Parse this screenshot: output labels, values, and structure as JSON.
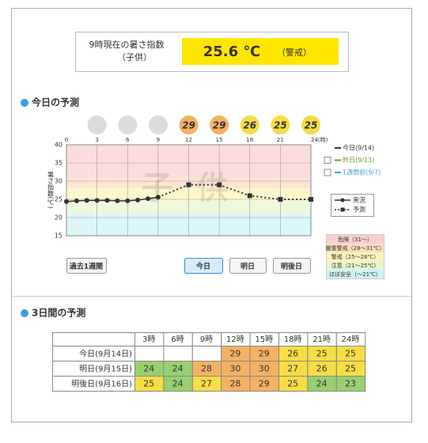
{
  "header": {
    "label_line1": "9時現在の暑さ指数",
    "label_line2": "（子供）",
    "value": "25.6 ℃",
    "level": "（警戒）"
  },
  "today_title": "今日の予測",
  "chart_data": {
    "type": "line",
    "y_label": "暑さ指数(℃)",
    "watermark": "子供",
    "xlim": [
      0,
      24
    ],
    "xticks": [
      0,
      3,
      6,
      9,
      12,
      15,
      18,
      21,
      {
        "value": 24,
        "label": "24(時)"
      }
    ],
    "ylim": [
      15,
      40
    ],
    "yticks": [
      15,
      20,
      25,
      30,
      35,
      40
    ],
    "grid": true,
    "bands": [
      {
        "label": "危険（31～）",
        "range": [
          31,
          null
        ],
        "color": "#f9cfcf",
        "cell_color": "#f08a8a"
      },
      {
        "label": "厳重警戒（28～31℃）",
        "range": [
          28,
          31
        ],
        "color": "#fcdcc0",
        "cell_color": "#f5b262"
      },
      {
        "label": "警戒（25～28℃）",
        "range": [
          25,
          28
        ],
        "color": "#fdf3b8",
        "cell_color": "#f7dd45"
      },
      {
        "label": "注意（21～25℃）",
        "range": [
          21,
          25
        ],
        "color": "#e8f5cd",
        "cell_color": "#98d070"
      },
      {
        "label": "ほぼ安全（～21℃）",
        "range": [
          null,
          21
        ],
        "color": "#cdf2f6",
        "cell_color": "#6ccfe0"
      }
    ],
    "series": [
      {
        "name": "実況",
        "color": "#333333",
        "dashed": false,
        "marker": "circle",
        "x": [
          0,
          1,
          2,
          3,
          4,
          5,
          6,
          7,
          8,
          9
        ],
        "values": [
          24.4,
          24.6,
          24.7,
          24.7,
          24.7,
          24.6,
          24.6,
          24.8,
          25.2,
          25.6
        ]
      },
      {
        "name": "予測",
        "color": "#333333",
        "dashed": true,
        "marker": "square",
        "x": [
          9,
          12,
          15,
          18,
          21,
          24
        ],
        "values": [
          25.6,
          29,
          29,
          26,
          25,
          25
        ]
      }
    ],
    "forecast_icons": {
      "x": [
        3,
        6,
        9,
        12,
        15,
        18,
        21,
        24
      ],
      "values": [
        null,
        null,
        null,
        29,
        29,
        26,
        25,
        25
      ]
    },
    "day_legend": [
      {
        "name": "今日(9/14)",
        "color": "#333333",
        "checkbox": false
      },
      {
        "name": "昨日(9/13)",
        "color": "#6a9a2a",
        "checkbox": true
      },
      {
        "name": "1週間前(9/7)",
        "color": "#3aa0d0",
        "checkbox": true
      }
    ]
  },
  "buttons": {
    "labels": [
      "過去1週間",
      "今日",
      "明日",
      "明後日"
    ],
    "active": 1
  },
  "three_day_title": "3日間の予測",
  "table": {
    "header": [
      "3時",
      "6時",
      "9時",
      "12時",
      "15時",
      "18時",
      "21時",
      "24時"
    ],
    "rows": [
      {
        "label": "今日(9月14日)",
        "cells": [
          null,
          null,
          null,
          29,
          29,
          26,
          25,
          25
        ]
      },
      {
        "label": "明日(9月15日)",
        "cells": [
          24,
          24,
          28,
          30,
          30,
          27,
          26,
          25
        ]
      },
      {
        "label": "明後日(9月16日)",
        "cells": [
          25,
          24,
          27,
          28,
          29,
          25,
          24,
          23
        ]
      }
    ]
  }
}
